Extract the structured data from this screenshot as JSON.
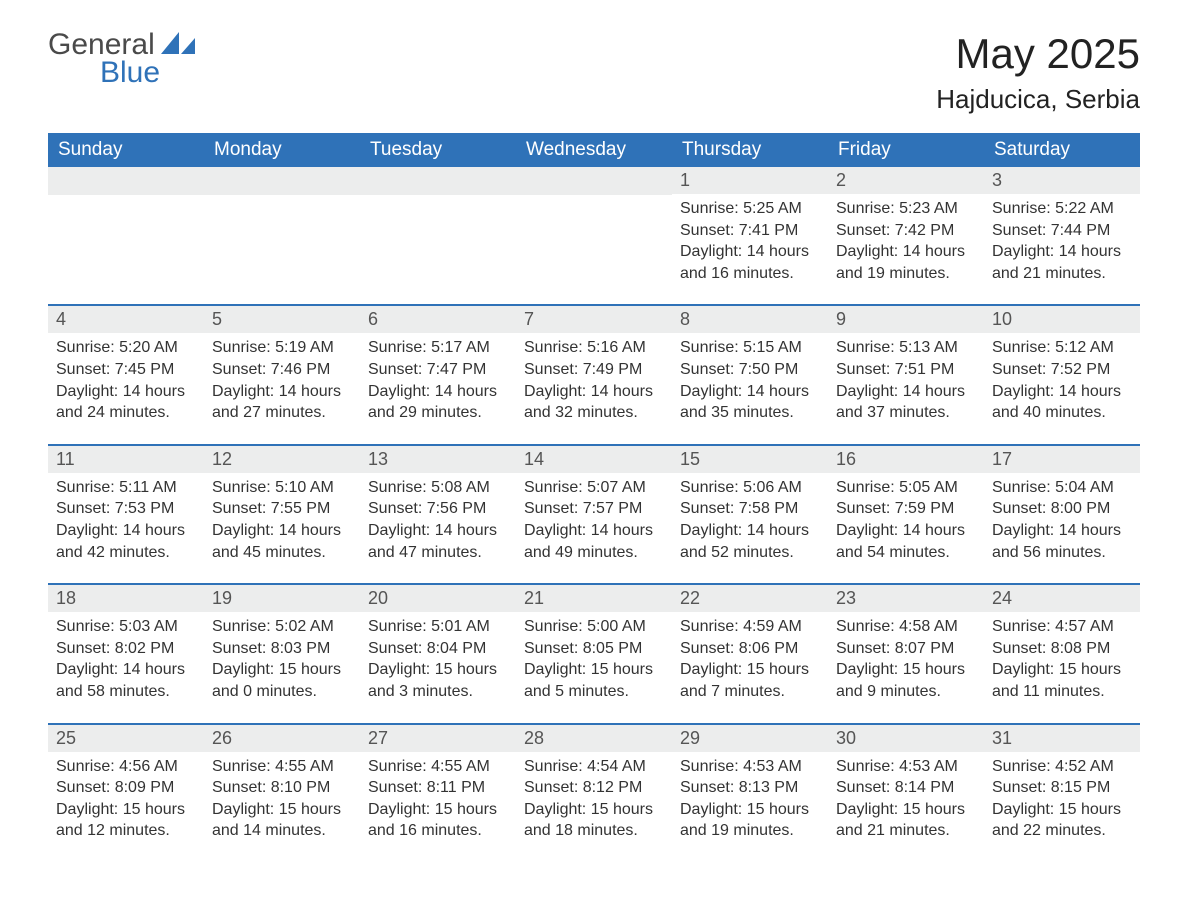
{
  "logo": {
    "word1": "General",
    "word2": "Blue",
    "tri_color": "#2f72b8"
  },
  "title": "May 2025",
  "location": "Hajducica, Serbia",
  "colors": {
    "header_bg": "#2f72b8",
    "header_text": "#ffffff",
    "daynum_bg": "#eceded",
    "text": "#333333",
    "background": "#ffffff",
    "week_divider": "#2f72b8"
  },
  "fonts": {
    "title_size_pt": 32,
    "location_size_pt": 20,
    "header_size_pt": 14,
    "body_size_pt": 12
  },
  "day_headers": [
    "Sunday",
    "Monday",
    "Tuesday",
    "Wednesday",
    "Thursday",
    "Friday",
    "Saturday"
  ],
  "weeks": [
    [
      {
        "n": "",
        "sunrise": "",
        "sunset": "",
        "daylight": ""
      },
      {
        "n": "",
        "sunrise": "",
        "sunset": "",
        "daylight": ""
      },
      {
        "n": "",
        "sunrise": "",
        "sunset": "",
        "daylight": ""
      },
      {
        "n": "",
        "sunrise": "",
        "sunset": "",
        "daylight": ""
      },
      {
        "n": "1",
        "sunrise": "Sunrise: 5:25 AM",
        "sunset": "Sunset: 7:41 PM",
        "daylight": "Daylight: 14 hours and 16 minutes."
      },
      {
        "n": "2",
        "sunrise": "Sunrise: 5:23 AM",
        "sunset": "Sunset: 7:42 PM",
        "daylight": "Daylight: 14 hours and 19 minutes."
      },
      {
        "n": "3",
        "sunrise": "Sunrise: 5:22 AM",
        "sunset": "Sunset: 7:44 PM",
        "daylight": "Daylight: 14 hours and 21 minutes."
      }
    ],
    [
      {
        "n": "4",
        "sunrise": "Sunrise: 5:20 AM",
        "sunset": "Sunset: 7:45 PM",
        "daylight": "Daylight: 14 hours and 24 minutes."
      },
      {
        "n": "5",
        "sunrise": "Sunrise: 5:19 AM",
        "sunset": "Sunset: 7:46 PM",
        "daylight": "Daylight: 14 hours and 27 minutes."
      },
      {
        "n": "6",
        "sunrise": "Sunrise: 5:17 AM",
        "sunset": "Sunset: 7:47 PM",
        "daylight": "Daylight: 14 hours and 29 minutes."
      },
      {
        "n": "7",
        "sunrise": "Sunrise: 5:16 AM",
        "sunset": "Sunset: 7:49 PM",
        "daylight": "Daylight: 14 hours and 32 minutes."
      },
      {
        "n": "8",
        "sunrise": "Sunrise: 5:15 AM",
        "sunset": "Sunset: 7:50 PM",
        "daylight": "Daylight: 14 hours and 35 minutes."
      },
      {
        "n": "9",
        "sunrise": "Sunrise: 5:13 AM",
        "sunset": "Sunset: 7:51 PM",
        "daylight": "Daylight: 14 hours and 37 minutes."
      },
      {
        "n": "10",
        "sunrise": "Sunrise: 5:12 AM",
        "sunset": "Sunset: 7:52 PM",
        "daylight": "Daylight: 14 hours and 40 minutes."
      }
    ],
    [
      {
        "n": "11",
        "sunrise": "Sunrise: 5:11 AM",
        "sunset": "Sunset: 7:53 PM",
        "daylight": "Daylight: 14 hours and 42 minutes."
      },
      {
        "n": "12",
        "sunrise": "Sunrise: 5:10 AM",
        "sunset": "Sunset: 7:55 PM",
        "daylight": "Daylight: 14 hours and 45 minutes."
      },
      {
        "n": "13",
        "sunrise": "Sunrise: 5:08 AM",
        "sunset": "Sunset: 7:56 PM",
        "daylight": "Daylight: 14 hours and 47 minutes."
      },
      {
        "n": "14",
        "sunrise": "Sunrise: 5:07 AM",
        "sunset": "Sunset: 7:57 PM",
        "daylight": "Daylight: 14 hours and 49 minutes."
      },
      {
        "n": "15",
        "sunrise": "Sunrise: 5:06 AM",
        "sunset": "Sunset: 7:58 PM",
        "daylight": "Daylight: 14 hours and 52 minutes."
      },
      {
        "n": "16",
        "sunrise": "Sunrise: 5:05 AM",
        "sunset": "Sunset: 7:59 PM",
        "daylight": "Daylight: 14 hours and 54 minutes."
      },
      {
        "n": "17",
        "sunrise": "Sunrise: 5:04 AM",
        "sunset": "Sunset: 8:00 PM",
        "daylight": "Daylight: 14 hours and 56 minutes."
      }
    ],
    [
      {
        "n": "18",
        "sunrise": "Sunrise: 5:03 AM",
        "sunset": "Sunset: 8:02 PM",
        "daylight": "Daylight: 14 hours and 58 minutes."
      },
      {
        "n": "19",
        "sunrise": "Sunrise: 5:02 AM",
        "sunset": "Sunset: 8:03 PM",
        "daylight": "Daylight: 15 hours and 0 minutes."
      },
      {
        "n": "20",
        "sunrise": "Sunrise: 5:01 AM",
        "sunset": "Sunset: 8:04 PM",
        "daylight": "Daylight: 15 hours and 3 minutes."
      },
      {
        "n": "21",
        "sunrise": "Sunrise: 5:00 AM",
        "sunset": "Sunset: 8:05 PM",
        "daylight": "Daylight: 15 hours and 5 minutes."
      },
      {
        "n": "22",
        "sunrise": "Sunrise: 4:59 AM",
        "sunset": "Sunset: 8:06 PM",
        "daylight": "Daylight: 15 hours and 7 minutes."
      },
      {
        "n": "23",
        "sunrise": "Sunrise: 4:58 AM",
        "sunset": "Sunset: 8:07 PM",
        "daylight": "Daylight: 15 hours and 9 minutes."
      },
      {
        "n": "24",
        "sunrise": "Sunrise: 4:57 AM",
        "sunset": "Sunset: 8:08 PM",
        "daylight": "Daylight: 15 hours and 11 minutes."
      }
    ],
    [
      {
        "n": "25",
        "sunrise": "Sunrise: 4:56 AM",
        "sunset": "Sunset: 8:09 PM",
        "daylight": "Daylight: 15 hours and 12 minutes."
      },
      {
        "n": "26",
        "sunrise": "Sunrise: 4:55 AM",
        "sunset": "Sunset: 8:10 PM",
        "daylight": "Daylight: 15 hours and 14 minutes."
      },
      {
        "n": "27",
        "sunrise": "Sunrise: 4:55 AM",
        "sunset": "Sunset: 8:11 PM",
        "daylight": "Daylight: 15 hours and 16 minutes."
      },
      {
        "n": "28",
        "sunrise": "Sunrise: 4:54 AM",
        "sunset": "Sunset: 8:12 PM",
        "daylight": "Daylight: 15 hours and 18 minutes."
      },
      {
        "n": "29",
        "sunrise": "Sunrise: 4:53 AM",
        "sunset": "Sunset: 8:13 PM",
        "daylight": "Daylight: 15 hours and 19 minutes."
      },
      {
        "n": "30",
        "sunrise": "Sunrise: 4:53 AM",
        "sunset": "Sunset: 8:14 PM",
        "daylight": "Daylight: 15 hours and 21 minutes."
      },
      {
        "n": "31",
        "sunrise": "Sunrise: 4:52 AM",
        "sunset": "Sunset: 8:15 PM",
        "daylight": "Daylight: 15 hours and 22 minutes."
      }
    ]
  ]
}
